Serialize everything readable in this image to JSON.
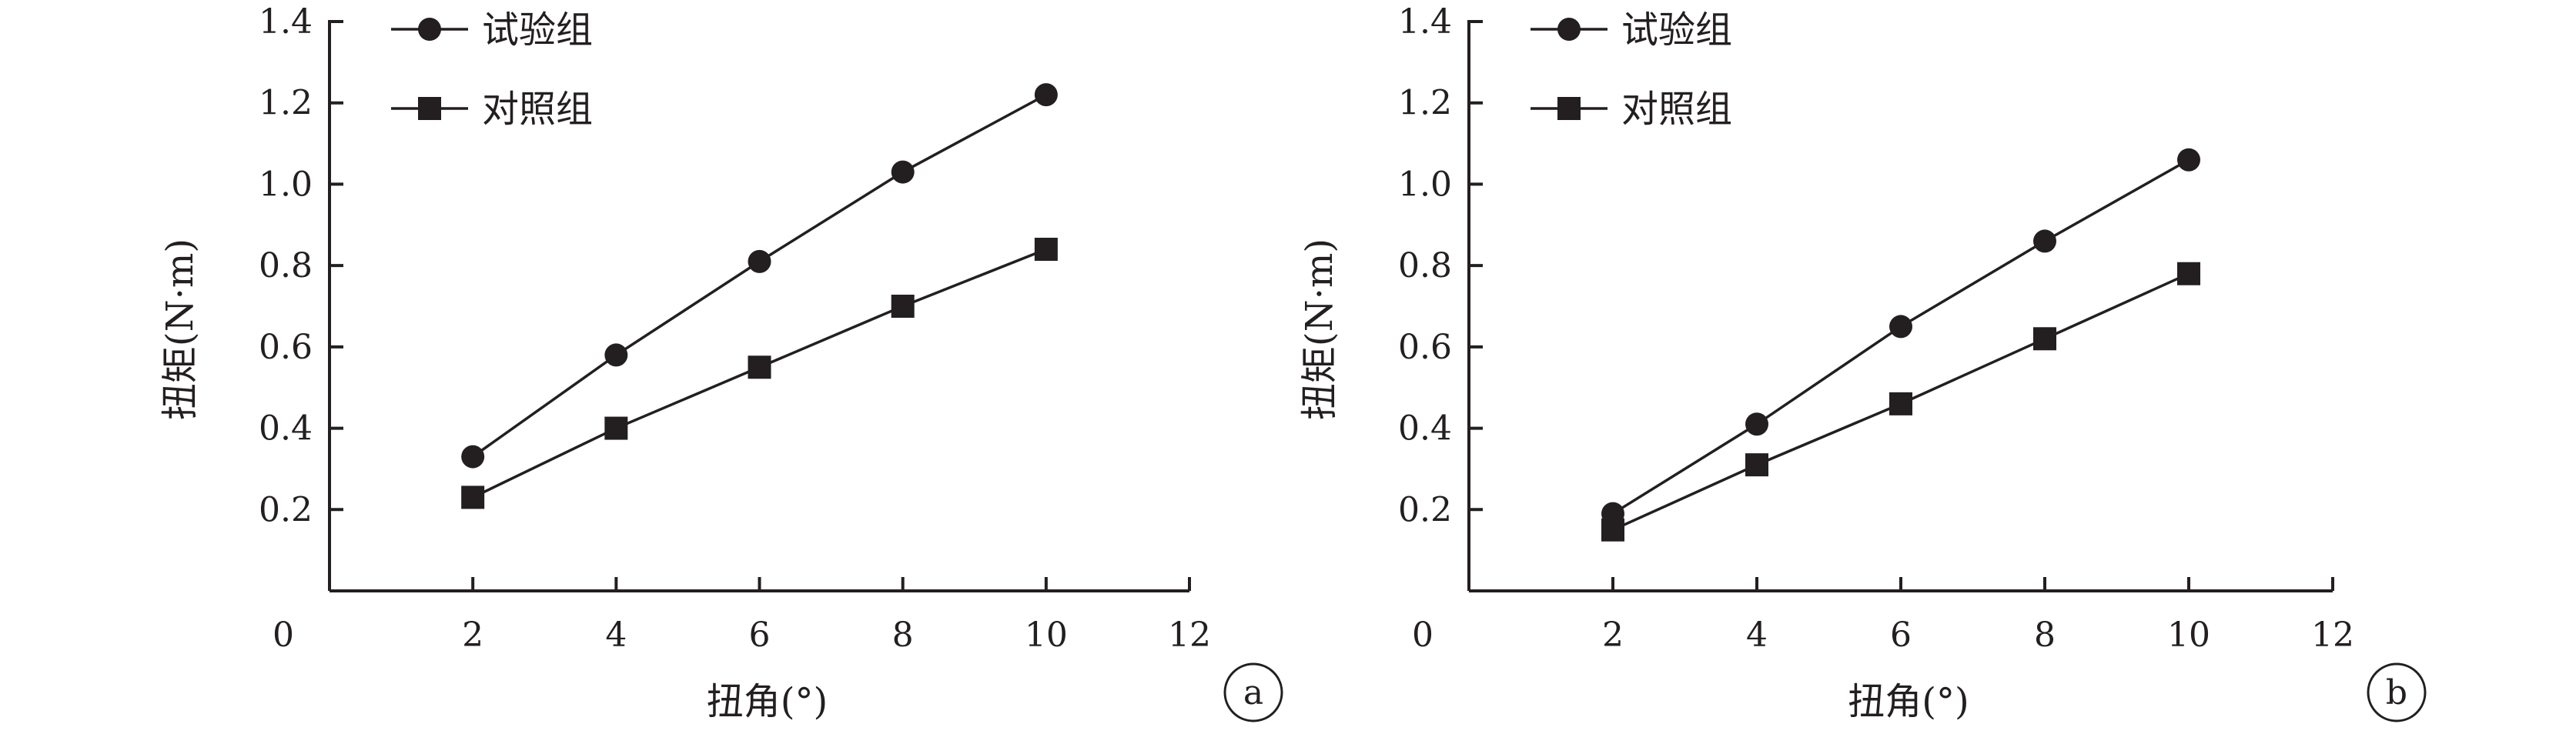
{
  "chart_data": [
    {
      "type": "line",
      "panel_label": "a",
      "xlabel": "扭角(°)",
      "ylabel": "扭矩(N·m)",
      "xlim": [
        0,
        12
      ],
      "ylim": [
        0,
        1.4
      ],
      "x_ticks": [
        "0",
        "2",
        "4",
        "6",
        "8",
        "10",
        "12"
      ],
      "y_ticks": [
        "0.2",
        "0.4",
        "0.6",
        "0.8",
        "1.0",
        "1.2",
        "1.4"
      ],
      "legend_position": "top-left",
      "grid": false,
      "x": [
        2,
        4,
        6,
        8,
        10
      ],
      "series": [
        {
          "name": "试验组",
          "marker": "circle",
          "values": [
            0.33,
            0.58,
            0.81,
            1.03,
            1.22
          ]
        },
        {
          "name": "对照组",
          "marker": "square",
          "values": [
            0.23,
            0.4,
            0.55,
            0.7,
            0.84
          ]
        }
      ]
    },
    {
      "type": "line",
      "panel_label": "b",
      "xlabel": "扭角(°)",
      "ylabel": "扭矩(N·m)",
      "xlim": [
        0,
        12
      ],
      "ylim": [
        0,
        1.4
      ],
      "x_ticks": [
        "0",
        "2",
        "4",
        "6",
        "8",
        "10",
        "12"
      ],
      "y_ticks": [
        "0.2",
        "0.4",
        "0.6",
        "0.8",
        "1.0",
        "1.2",
        "1.4"
      ],
      "legend_position": "top-left",
      "grid": false,
      "x": [
        2,
        4,
        6,
        8,
        10
      ],
      "series": [
        {
          "name": "试验组",
          "marker": "circle",
          "values": [
            0.19,
            0.41,
            0.65,
            0.86,
            1.06
          ]
        },
        {
          "name": "对照组",
          "marker": "square",
          "values": [
            0.15,
            0.31,
            0.46,
            0.62,
            0.78
          ]
        }
      ]
    }
  ]
}
